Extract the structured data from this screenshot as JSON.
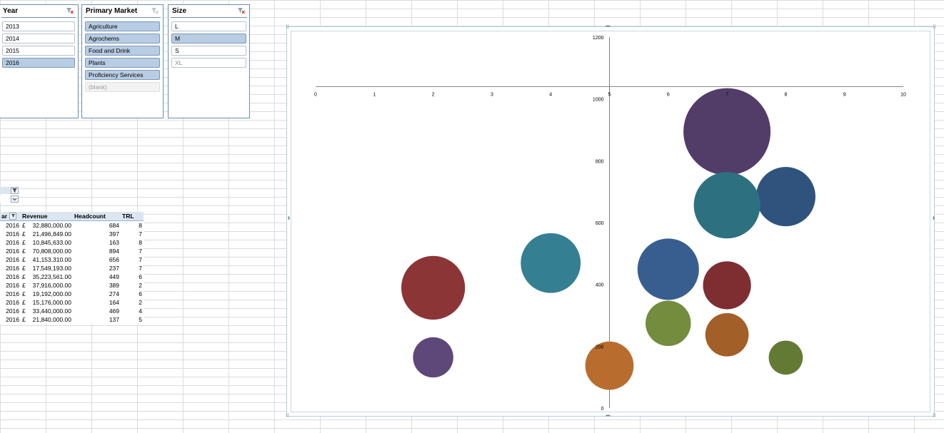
{
  "slicers": {
    "year": {
      "title": "Year",
      "items": [
        {
          "label": "2013",
          "state": "normal"
        },
        {
          "label": "2014",
          "state": "normal"
        },
        {
          "label": "2015",
          "state": "normal"
        },
        {
          "label": "2016",
          "state": "selected"
        }
      ]
    },
    "market": {
      "title": "Primary Market",
      "items": [
        {
          "label": "Agriculture",
          "state": "selected"
        },
        {
          "label": "Agrochems",
          "state": "selected"
        },
        {
          "label": "Food and Drink",
          "state": "selected"
        },
        {
          "label": "Plants",
          "state": "selected"
        },
        {
          "label": "Proficiency Services",
          "state": "selected"
        },
        {
          "label": "(blank)",
          "state": "disabled"
        }
      ]
    },
    "size": {
      "title": "Size",
      "items": [
        {
          "label": "L",
          "state": "normal"
        },
        {
          "label": "M",
          "state": "selected"
        },
        {
          "label": "S",
          "state": "normal"
        },
        {
          "label": "XL",
          "state": "nodata"
        }
      ]
    }
  },
  "pivot": {
    "headers": {
      "year": "ar",
      "revenue": "Revenue",
      "headcount": "Headcount",
      "trl": "TRL"
    },
    "currency": "£",
    "rows": [
      {
        "year": "2016",
        "revenue": "32,880,000.00",
        "headcount": "684",
        "trl": "8"
      },
      {
        "year": "2016",
        "revenue": "21,496,849.00",
        "headcount": "397",
        "trl": "7"
      },
      {
        "year": "2016",
        "revenue": "10,845,633.00",
        "headcount": "163",
        "trl": "8"
      },
      {
        "year": "2016",
        "revenue": "70,808,000.00",
        "headcount": "894",
        "trl": "7"
      },
      {
        "year": "2016",
        "revenue": "41,153,310.00",
        "headcount": "656",
        "trl": "7"
      },
      {
        "year": "2016",
        "revenue": "17,549,193.00",
        "headcount": "237",
        "trl": "7"
      },
      {
        "year": "2016",
        "revenue": "35,223,561.00",
        "headcount": "449",
        "trl": "6"
      },
      {
        "year": "2016",
        "revenue": "37,916,000.00",
        "headcount": "389",
        "trl": "2"
      },
      {
        "year": "2016",
        "revenue": "19,192,000.00",
        "headcount": "274",
        "trl": "6"
      },
      {
        "year": "2016",
        "revenue": "15,176,000.00",
        "headcount": "164",
        "trl": "2"
      },
      {
        "year": "2016",
        "revenue": "33,440,000.00",
        "headcount": "469",
        "trl": "4"
      },
      {
        "year": "2016",
        "revenue": "21,840,000.00",
        "headcount": "137",
        "trl": "5"
      }
    ]
  },
  "chart_data": {
    "type": "bubble",
    "xlim": [
      0,
      10
    ],
    "ylim": [
      0,
      1200
    ],
    "x_ticks": [
      "0",
      "1",
      "2",
      "3",
      "4",
      "5",
      "6",
      "7",
      "8",
      "9",
      "10"
    ],
    "y_ticks": [
      "0",
      "200",
      "400",
      "600",
      "800",
      "1000",
      "1200"
    ],
    "points": [
      {
        "x": 8,
        "y": 684,
        "size": 32880000,
        "color": "#2f537c"
      },
      {
        "x": 7,
        "y": 397,
        "size": 21496849,
        "color": "#7e2e30"
      },
      {
        "x": 8,
        "y": 163,
        "size": 10845633,
        "color": "#637a35"
      },
      {
        "x": 7,
        "y": 894,
        "size": 70808000,
        "color": "#523d69"
      },
      {
        "x": 7,
        "y": 656,
        "size": 41153310,
        "color": "#2d7181"
      },
      {
        "x": 7,
        "y": 237,
        "size": 17549193,
        "color": "#a25f28"
      },
      {
        "x": 6,
        "y": 449,
        "size": 35223561,
        "color": "#375e8e"
      },
      {
        "x": 2,
        "y": 389,
        "size": 37916000,
        "color": "#8c3537"
      },
      {
        "x": 6,
        "y": 274,
        "size": 19192000,
        "color": "#738c3e"
      },
      {
        "x": 2,
        "y": 164,
        "size": 15176000,
        "color": "#5e4779"
      },
      {
        "x": 4,
        "y": 469,
        "size": 33440000,
        "color": "#347f92"
      },
      {
        "x": 5,
        "y": 137,
        "size": 21840000,
        "color": "#b86d2e"
      }
    ],
    "grid": false
  }
}
